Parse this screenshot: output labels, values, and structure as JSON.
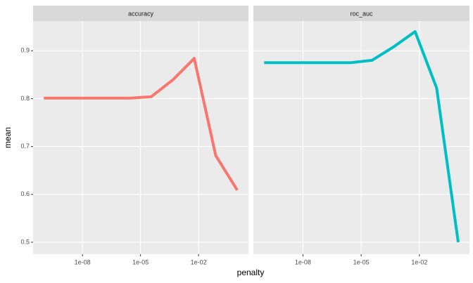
{
  "chart_data": {
    "type": "line",
    "x": [
      1e-10,
      1.29e-09,
      1.67e-08,
      2.15e-07,
      2.78e-06,
      3.59e-05,
      0.000464,
      0.00599,
      0.0774,
      1
    ],
    "series": [
      {
        "name": "accuracy",
        "color": "#f8766d",
        "values": [
          0.801,
          0.801,
          0.801,
          0.801,
          0.801,
          0.804,
          0.839,
          0.884,
          0.681,
          0.609
        ]
      },
      {
        "name": "roc_auc",
        "color": "#00bfc4",
        "values": [
          0.875,
          0.875,
          0.875,
          0.875,
          0.875,
          0.88,
          0.908,
          0.94,
          0.822,
          0.5
        ]
      }
    ],
    "facet": true,
    "xlabel": "penalty",
    "ylabel": "mean",
    "log_x": true,
    "xlim": [
      2.8e-11,
      3.8
    ],
    "xticks": [
      {
        "value": 1e-08,
        "label": "1e-08"
      },
      {
        "value": 1e-05,
        "label": "1e-05"
      },
      {
        "value": 0.01,
        "label": "1e-02"
      }
    ],
    "ylim": [
      0.475,
      0.962
    ],
    "yticks": [
      0.5,
      0.6,
      0.7,
      0.8,
      0.9
    ],
    "grid": true
  }
}
